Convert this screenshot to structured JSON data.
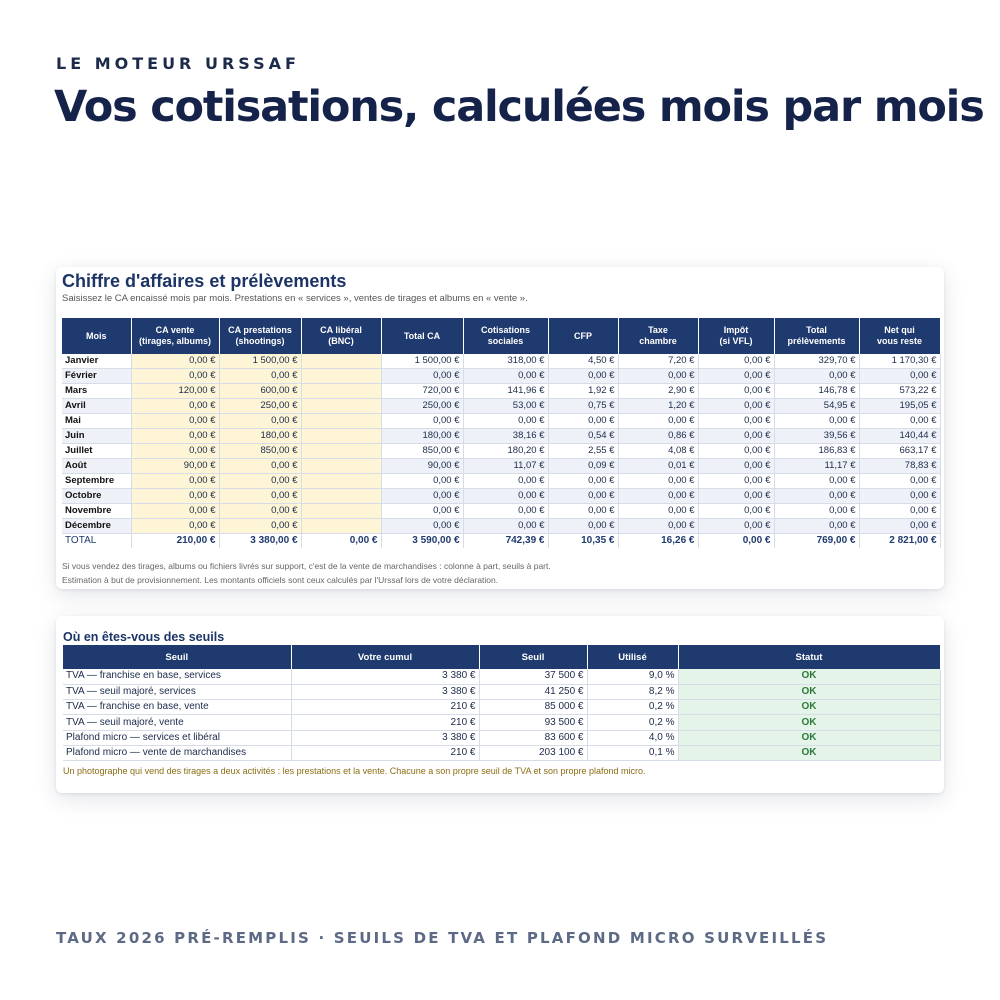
{
  "eyebrow": "LE MOTEUR URSSAF",
  "headline": "Vos cotisations, calculées mois par mois",
  "footer_tag": "TAUX 2026 PRÉ-REMPLIS · SEUILS DE TVA ET PLAFOND MICRO SURVEILLÉS",
  "table1": {
    "title": "Chiffre d'affaires et prélèvements",
    "subtitle": "Saisissez le CA encaissé mois par mois. Prestations en « services », ventes de tirages et albums en « vente ».",
    "headers": [
      [
        "Mois",
        ""
      ],
      [
        "CA vente",
        "(tirages, albums)"
      ],
      [
        "CA prestations",
        "(shootings)"
      ],
      [
        "CA libéral",
        "(BNC)"
      ],
      [
        "Total CA",
        ""
      ],
      [
        "Cotisations",
        "sociales"
      ],
      [
        "CFP",
        ""
      ],
      [
        "Taxe",
        "chambre"
      ],
      [
        "Impôt",
        "(si VFL)"
      ],
      [
        "Total",
        "prélèvements"
      ],
      [
        "Net qui",
        "vous reste"
      ]
    ],
    "rows": [
      [
        "Janvier",
        "0,00 €",
        "1 500,00 €",
        "",
        "1 500,00 €",
        "318,00 €",
        "4,50 €",
        "7,20 €",
        "0,00 €",
        "329,70 €",
        "1 170,30 €"
      ],
      [
        "Février",
        "0,00 €",
        "0,00 €",
        "",
        "0,00 €",
        "0,00 €",
        "0,00 €",
        "0,00 €",
        "0,00 €",
        "0,00 €",
        "0,00 €"
      ],
      [
        "Mars",
        "120,00 €",
        "600,00 €",
        "",
        "720,00 €",
        "141,96 €",
        "1,92 €",
        "2,90 €",
        "0,00 €",
        "146,78 €",
        "573,22 €"
      ],
      [
        "Avril",
        "0,00 €",
        "250,00 €",
        "",
        "250,00 €",
        "53,00 €",
        "0,75 €",
        "1,20 €",
        "0,00 €",
        "54,95 €",
        "195,05 €"
      ],
      [
        "Mai",
        "0,00 €",
        "0,00 €",
        "",
        "0,00 €",
        "0,00 €",
        "0,00 €",
        "0,00 €",
        "0,00 €",
        "0,00 €",
        "0,00 €"
      ],
      [
        "Juin",
        "0,00 €",
        "180,00 €",
        "",
        "180,00 €",
        "38,16 €",
        "0,54 €",
        "0,86 €",
        "0,00 €",
        "39,56 €",
        "140,44 €"
      ],
      [
        "Juillet",
        "0,00 €",
        "850,00 €",
        "",
        "850,00 €",
        "180,20 €",
        "2,55 €",
        "4,08 €",
        "0,00 €",
        "186,83 €",
        "663,17 €"
      ],
      [
        "Août",
        "90,00 €",
        "0,00 €",
        "",
        "90,00 €",
        "11,07 €",
        "0,09 €",
        "0,01 €",
        "0,00 €",
        "11,17 €",
        "78,83 €"
      ],
      [
        "Septembre",
        "0,00 €",
        "0,00 €",
        "",
        "0,00 €",
        "0,00 €",
        "0,00 €",
        "0,00 €",
        "0,00 €",
        "0,00 €",
        "0,00 €"
      ],
      [
        "Octobre",
        "0,00 €",
        "0,00 €",
        "",
        "0,00 €",
        "0,00 €",
        "0,00 €",
        "0,00 €",
        "0,00 €",
        "0,00 €",
        "0,00 €"
      ],
      [
        "Novembre",
        "0,00 €",
        "0,00 €",
        "",
        "0,00 €",
        "0,00 €",
        "0,00 €",
        "0,00 €",
        "0,00 €",
        "0,00 €",
        "0,00 €"
      ],
      [
        "Décembre",
        "0,00 €",
        "0,00 €",
        "",
        "0,00 €",
        "0,00 €",
        "0,00 €",
        "0,00 €",
        "0,00 €",
        "0,00 €",
        "0,00 €"
      ]
    ],
    "total": [
      "TOTAL",
      "210,00 €",
      "3 380,00 €",
      "0,00 €",
      "3 590,00 €",
      "742,39 €",
      "10,35 €",
      "16,26 €",
      "0,00 €",
      "769,00 €",
      "2 821,00 €"
    ],
    "note1": "Si vous vendez des tirages, albums ou fichiers livrés sur support, c'est de la vente de marchandises : colonne à part, seuils à part.",
    "note2": "Estimation à but de provisionnement. Les montants officiels sont ceux calculés par l'Urssaf lors de votre déclaration."
  },
  "table2": {
    "title": "Où en êtes-vous des seuils",
    "headers": [
      "Seuil",
      "Votre cumul",
      "Seuil",
      "Utilisé",
      "Statut"
    ],
    "rows": [
      [
        "TVA — franchise en base, services",
        "3 380 €",
        "37 500 €",
        "9,0 %",
        "OK"
      ],
      [
        "TVA — seuil majoré, services",
        "3 380 €",
        "41 250 €",
        "8,2 %",
        "OK"
      ],
      [
        "TVA — franchise en base, vente",
        "210 €",
        "85 000 €",
        "0,2 %",
        "OK"
      ],
      [
        "TVA — seuil majoré, vente",
        "210 €",
        "93 500 €",
        "0,2 %",
        "OK"
      ],
      [
        "Plafond micro — services et libéral",
        "3 380 €",
        "83 600 €",
        "4,0 %",
        "OK"
      ],
      [
        "Plafond micro — vente de marchandises",
        "210 €",
        "203 100 €",
        "0,1 %",
        "OK"
      ]
    ],
    "note": "Un photographe qui vend des tirages a deux activités : les prestations et la vente. Chacune a son propre seuil de TVA et son propre plafond micro."
  },
  "colors": {
    "navy": "#1f3a6e",
    "input_yellow": "#fdf5d6",
    "ok_green_bg": "#e5f4e8",
    "ok_green_text": "#2b7a3a",
    "note_gold": "#8a6d12"
  }
}
